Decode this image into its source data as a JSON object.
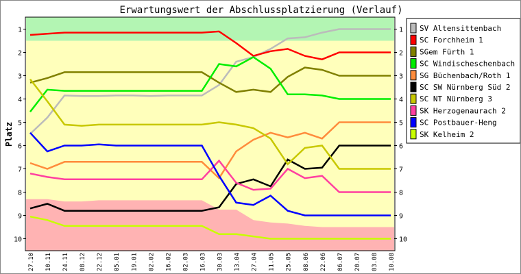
{
  "chart_data": {
    "type": "line",
    "title": "Erwartungswert der Abschlussplatzierung (Verlauf)",
    "xlabel": "",
    "ylabel": "Platz",
    "ylim": [
      0.5,
      10.5
    ],
    "y_inverted": true,
    "yticks": [
      "1",
      "2",
      "3",
      "4",
      "5",
      "6",
      "7",
      "8",
      "9",
      "10"
    ],
    "categories": [
      "27.10",
      "10.11",
      "24.11",
      "08.12",
      "22.12",
      "05.01",
      "19.01",
      "02.02",
      "16.02",
      "02.03",
      "16.03",
      "30.03",
      "13.04",
      "27.04",
      "11.05",
      "25.05",
      "08.06",
      "22.06",
      "06.07",
      "20.07",
      "03.08",
      "10.08"
    ],
    "bands": {
      "top_green_to": 1.5,
      "bottom_pink_from": [
        8.3,
        8.3,
        8.4,
        8.4,
        8.35,
        8.35,
        8.35,
        8.35,
        8.35,
        8.35,
        8.35,
        8.75,
        8.75,
        9.2,
        9.3,
        9.35,
        9.45,
        9.5,
        9.5,
        9.5,
        9.5,
        9.5
      ],
      "colors": {
        "green": "#b3f5b3",
        "yellow": "#ffffbb",
        "pink": "#ffb3b3"
      }
    },
    "legend_position": "right",
    "series": [
      {
        "name": "SV Altensittenbach",
        "color": "#bbbbbb",
        "values": [
          5.5,
          4.8,
          3.85,
          3.87,
          3.87,
          3.85,
          3.85,
          3.87,
          3.85,
          3.85,
          3.85,
          3.4,
          2.4,
          2.2,
          1.85,
          1.4,
          1.35,
          1.15,
          1.0,
          1.0,
          1.0,
          1.0
        ]
      },
      {
        "name": "SC Forchheim 1",
        "color": "#ff0000",
        "values": [
          1.25,
          1.2,
          1.15,
          1.15,
          1.15,
          1.15,
          1.15,
          1.15,
          1.15,
          1.15,
          1.15,
          1.1,
          1.6,
          2.15,
          1.95,
          1.85,
          2.15,
          2.3,
          2.0,
          2.0,
          2.0,
          2.0
        ]
      },
      {
        "name": "SGem Fürth 1",
        "color": "#808000",
        "values": [
          3.3,
          3.1,
          2.85,
          2.85,
          2.85,
          2.85,
          2.85,
          2.85,
          2.85,
          2.85,
          2.85,
          3.3,
          3.7,
          3.6,
          3.7,
          3.05,
          2.65,
          2.75,
          3.0,
          3.0,
          3.0,
          3.0
        ]
      },
      {
        "name": "SC Windischeschenbach 1",
        "color": "#00ee00",
        "values": [
          4.55,
          3.6,
          3.65,
          3.65,
          3.65,
          3.65,
          3.65,
          3.65,
          3.65,
          3.65,
          3.65,
          2.5,
          2.6,
          2.2,
          2.7,
          3.8,
          3.8,
          3.85,
          4.0,
          4.0,
          4.0,
          4.0
        ]
      },
      {
        "name": "SG Büchenbach/Roth 1",
        "color": "#ff8c3c",
        "values": [
          6.75,
          7.0,
          6.7,
          6.7,
          6.7,
          6.7,
          6.7,
          6.7,
          6.7,
          6.7,
          6.7,
          7.4,
          6.25,
          5.75,
          5.45,
          5.65,
          5.45,
          5.7,
          5.0,
          5.0,
          5.0,
          5.0
        ]
      },
      {
        "name": "SC SW Nürnberg Süd 2",
        "color": "#000000",
        "values": [
          8.7,
          8.5,
          8.8,
          8.8,
          8.8,
          8.8,
          8.8,
          8.8,
          8.8,
          8.8,
          8.8,
          8.65,
          7.65,
          7.45,
          7.75,
          6.6,
          7.0,
          6.95,
          6.0,
          6.0,
          6.0,
          6.0
        ]
      },
      {
        "name": "SC NT Nürnberg 3",
        "color": "#c8c800",
        "values": [
          3.15,
          4.1,
          5.1,
          5.15,
          5.1,
          5.1,
          5.1,
          5.1,
          5.1,
          5.1,
          5.1,
          5.0,
          5.1,
          5.25,
          5.7,
          6.8,
          6.1,
          6.0,
          7.0,
          7.0,
          7.0,
          7.0
        ]
      },
      {
        "name": "SK Herzogenaurach 2",
        "color": "#ff3fa0",
        "values": [
          7.2,
          7.35,
          7.45,
          7.45,
          7.45,
          7.45,
          7.45,
          7.45,
          7.45,
          7.45,
          7.45,
          6.65,
          7.6,
          7.9,
          7.85,
          7.0,
          7.4,
          7.3,
          8.0,
          8.0,
          8.0,
          8.0
        ]
      },
      {
        "name": "SC Postbauer-Heng",
        "color": "#0000ff",
        "values": [
          5.45,
          6.25,
          6.0,
          6.0,
          5.95,
          6.0,
          6.0,
          6.0,
          6.0,
          6.0,
          6.0,
          7.3,
          8.45,
          8.55,
          8.15,
          8.8,
          9.0,
          9.0,
          9.0,
          9.0,
          9.0,
          9.0
        ]
      },
      {
        "name": "SK Kelheim 2",
        "color": "#c8ff00",
        "values": [
          9.05,
          9.2,
          9.45,
          9.45,
          9.45,
          9.45,
          9.45,
          9.45,
          9.45,
          9.45,
          9.45,
          9.8,
          9.8,
          9.9,
          10.0,
          10.0,
          10.0,
          10.0,
          10.0,
          10.0,
          10.0,
          10.0
        ]
      }
    ]
  }
}
